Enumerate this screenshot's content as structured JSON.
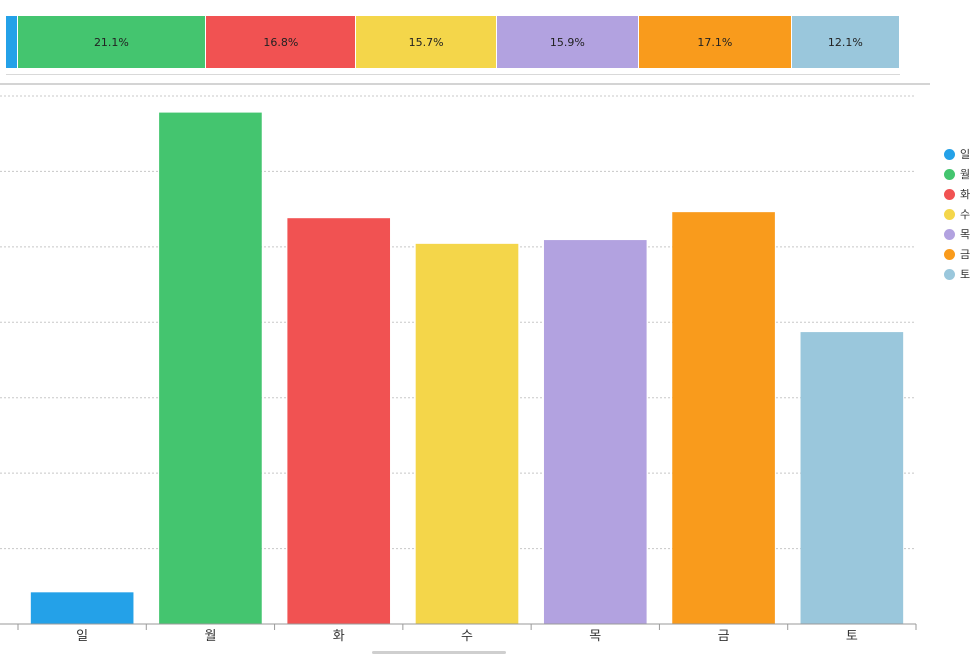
{
  "chart_data": [
    {
      "type": "bar",
      "stacked_percent": true,
      "categories": [
        "일",
        "월",
        "화",
        "수",
        "목",
        "금",
        "토"
      ],
      "values": [
        1.3,
        21.1,
        16.8,
        15.7,
        15.9,
        17.1,
        12.1
      ],
      "labels": [
        "",
        "21.1%",
        "16.8%",
        "15.7%",
        "15.9%",
        "17.1%",
        "12.1%"
      ],
      "colors": [
        "#24a1e8",
        "#44c56f",
        "#f15252",
        "#f4d64a",
        "#b2a2e0",
        "#f99b1c",
        "#9ac7dc"
      ]
    },
    {
      "type": "bar",
      "categories": [
        "일",
        "월",
        "화",
        "수",
        "목",
        "금",
        "토"
      ],
      "values": [
        0.42,
        6.78,
        5.38,
        5.04,
        5.09,
        5.46,
        3.87
      ],
      "colors": [
        "#24a1e8",
        "#44c56f",
        "#f15252",
        "#f4d64a",
        "#b2a2e0",
        "#f99b1c",
        "#9ac7dc"
      ],
      "ylim": [
        0,
        7
      ],
      "grid": true,
      "legend": {
        "position": "right",
        "entries": [
          "일",
          "월",
          "화",
          "수",
          "목",
          "금",
          "토"
        ]
      }
    }
  ]
}
